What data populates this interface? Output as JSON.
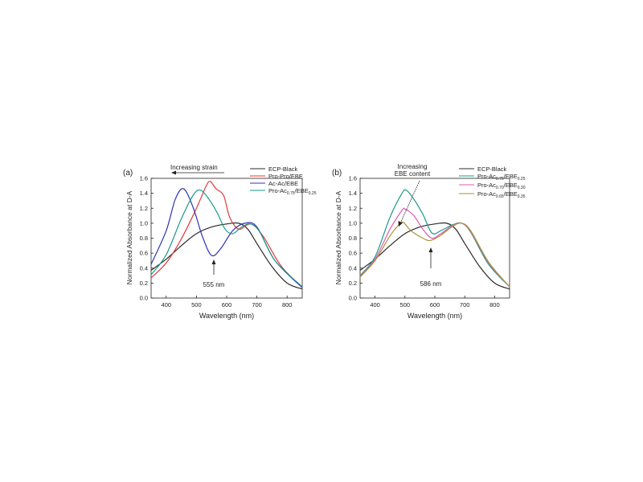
{
  "chart_data": [
    {
      "panel_label": "(a)",
      "type": "line",
      "xlabel": "Wavelength (nm)",
      "ylabel": "Normalized Absorbance at D-A",
      "xlim": [
        350,
        850
      ],
      "ylim": [
        0,
        1.6
      ],
      "xticks": [
        400,
        500,
        600,
        700,
        800
      ],
      "yticks": [
        0.0,
        0.2,
        0.4,
        0.6,
        0.8,
        1.0,
        1.2,
        1.4,
        1.6
      ],
      "grid": false,
      "legend_position": "top-right",
      "series": [
        {
          "name": "ECP-Black",
          "color": "#2b2b2b",
          "points": [
            [
              350,
              0.37
            ],
            [
              400,
              0.52
            ],
            [
              450,
              0.7
            ],
            [
              500,
              0.86
            ],
            [
              550,
              0.95
            ],
            [
              600,
              0.99
            ],
            [
              640,
              1.0
            ],
            [
              670,
              0.92
            ],
            [
              700,
              0.73
            ],
            [
              750,
              0.42
            ],
            [
              800,
              0.2
            ],
            [
              850,
              0.12
            ]
          ]
        },
        {
          "name": "Pro-Pro/EBE",
          "color": "#e03a3a",
          "points": [
            [
              350,
              0.27
            ],
            [
              400,
              0.47
            ],
            [
              450,
              0.79
            ],
            [
              500,
              1.2
            ],
            [
              530,
              1.48
            ],
            [
              545,
              1.56
            ],
            [
              565,
              1.46
            ],
            [
              590,
              1.37
            ],
            [
              610,
              1.08
            ],
            [
              640,
              0.92
            ],
            [
              680,
              0.99
            ],
            [
              720,
              0.83
            ],
            [
              780,
              0.43
            ],
            [
              850,
              0.14
            ]
          ]
        },
        {
          "name": "Ac-Ac/EBE",
          "color": "#2f33b5",
          "points": [
            [
              350,
              0.45
            ],
            [
              400,
              0.9
            ],
            [
              430,
              1.32
            ],
            [
              458,
              1.46
            ],
            [
              490,
              1.2
            ],
            [
              520,
              0.82
            ],
            [
              550,
              0.57
            ],
            [
              580,
              0.66
            ],
            [
              620,
              0.9
            ],
            [
              660,
              1.0
            ],
            [
              700,
              0.95
            ],
            [
              760,
              0.5
            ],
            [
              850,
              0.14
            ]
          ]
        },
        {
          "name": "Pro-Ac",
          "color": "#1a9a8a",
          "points": [
            [
              350,
              0.31
            ],
            [
              400,
              0.58
            ],
            [
              450,
              1.06
            ],
            [
              490,
              1.38
            ],
            [
              515,
              1.44
            ],
            [
              545,
              1.3
            ],
            [
              570,
              1.13
            ],
            [
              595,
              0.92
            ],
            [
              620,
              0.86
            ],
            [
              650,
              0.95
            ],
            [
              680,
              0.99
            ],
            [
              710,
              0.88
            ],
            [
              760,
              0.5
            ],
            [
              850,
              0.15
            ]
          ]
        }
      ],
      "annotations": [
        {
          "text": "Increasing strain",
          "type": "arrow-left"
        },
        {
          "text": "555 nm",
          "type": "arrow-up"
        }
      ]
    },
    {
      "panel_label": "(b)",
      "type": "line",
      "xlabel": "Wavelength (nm)",
      "ylabel": "Normalized Absorbance at D-A",
      "xlim": [
        350,
        850
      ],
      "ylim": [
        0,
        1.6
      ],
      "xticks": [
        400,
        500,
        600,
        700,
        800
      ],
      "yticks": [
        0.0,
        0.2,
        0.4,
        0.6,
        0.8,
        1.0,
        1.2,
        1.4,
        1.6
      ],
      "grid": false,
      "legend_position": "top-right",
      "series": [
        {
          "name": "ECP-Black",
          "color": "#2b2b2b",
          "points": [
            [
              350,
              0.37
            ],
            [
              400,
              0.52
            ],
            [
              450,
              0.7
            ],
            [
              500,
              0.86
            ],
            [
              550,
              0.95
            ],
            [
              600,
              0.99
            ],
            [
              640,
              1.0
            ],
            [
              670,
              0.92
            ],
            [
              700,
              0.73
            ],
            [
              750,
              0.42
            ],
            [
              800,
              0.2
            ],
            [
              850,
              0.12
            ]
          ]
        },
        {
          "name": "Pro-Ac",
          "color": "#1a9a8a",
          "points": [
            [
              350,
              0.3
            ],
            [
              400,
              0.55
            ],
            [
              450,
              1.08
            ],
            [
              490,
              1.4
            ],
            [
              505,
              1.44
            ],
            [
              530,
              1.32
            ],
            [
              560,
              1.12
            ],
            [
              590,
              0.87
            ],
            [
              620,
              0.9
            ],
            [
              660,
              0.98
            ],
            [
              690,
              1.0
            ],
            [
              720,
              0.88
            ],
            [
              780,
              0.45
            ],
            [
              850,
              0.15
            ]
          ]
        },
        {
          "name": "Pro-Ac",
          "color": "#e05ab8",
          "points": [
            [
              350,
              0.29
            ],
            [
              400,
              0.52
            ],
            [
              450,
              0.92
            ],
            [
              490,
              1.17
            ],
            [
              500,
              1.19
            ],
            [
              530,
              1.1
            ],
            [
              560,
              0.92
            ],
            [
              590,
              0.8
            ],
            [
              620,
              0.86
            ],
            [
              660,
              0.97
            ],
            [
              690,
              1.0
            ],
            [
              720,
              0.89
            ],
            [
              780,
              0.47
            ],
            [
              850,
              0.15
            ]
          ]
        },
        {
          "name": "Pro-Ac",
          "color": "#a89230",
          "points": [
            [
              350,
              0.28
            ],
            [
              400,
              0.5
            ],
            [
              450,
              0.83
            ],
            [
              480,
              0.98
            ],
            [
              495,
              1.01
            ],
            [
              520,
              0.9
            ],
            [
              560,
              0.8
            ],
            [
              585,
              0.77
            ],
            [
              620,
              0.84
            ],
            [
              660,
              0.96
            ],
            [
              690,
              1.0
            ],
            [
              720,
              0.9
            ],
            [
              780,
              0.48
            ],
            [
              850,
              0.15
            ]
          ]
        }
      ],
      "annotations": [
        {
          "text": "Increasing",
          "type": "label"
        },
        {
          "text": "EBE content",
          "type": "label"
        },
        {
          "text": "586 nm",
          "type": "arrow-up"
        }
      ]
    }
  ],
  "legend_a": {
    "proac_sub1": "0.75",
    "proac_mid": "/EBE",
    "proac_sub2": "0.25"
  },
  "legend_b": {
    "s2_sub1": "0.75",
    "s2_sub2": "0.25",
    "s3_sub1": "0.70",
    "s3_sub2": "0.30",
    "s4_sub1": "0.65",
    "s4_sub2": "0.35",
    "mid": "/EBE"
  }
}
